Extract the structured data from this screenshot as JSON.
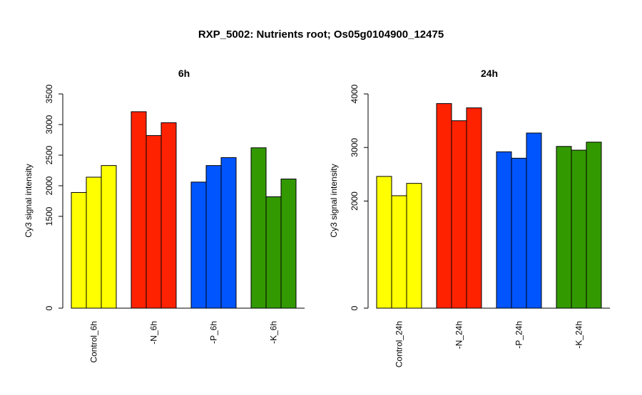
{
  "figure": {
    "title": "RXP_5002: Nutrients root; Os05g0104900_12475"
  },
  "chart_data": [
    {
      "type": "bar",
      "title": "6h",
      "xlabel": "",
      "ylabel": "Cy3 signal intensity",
      "ylim": [
        0,
        3500
      ],
      "yticks": [
        0,
        1500,
        2000,
        2500,
        3000,
        3500
      ],
      "categories": [
        "Control_6h",
        "-N_6h",
        "-P_6h",
        "-K_6h"
      ],
      "colors": [
        "#ffff00",
        "#ff2200",
        "#0055ff",
        "#339900"
      ],
      "values": [
        [
          1890,
          2140,
          2330
        ],
        [
          3210,
          2820,
          3030
        ],
        [
          2060,
          2330,
          2460
        ],
        [
          2620,
          1820,
          2110
        ]
      ],
      "grid": false
    },
    {
      "type": "bar",
      "title": "24h",
      "xlabel": "",
      "ylabel": "Cy3 signal intensity",
      "ylim": [
        0,
        4000
      ],
      "yticks": [
        0,
        2000,
        3000,
        4000
      ],
      "categories": [
        "Control_24h",
        "-N_24h",
        "-P_24h",
        "-K_24h"
      ],
      "colors": [
        "#ffff00",
        "#ff2200",
        "#0055ff",
        "#339900"
      ],
      "values": [
        [
          2460,
          2100,
          2330
        ],
        [
          3820,
          3500,
          3740
        ],
        [
          2920,
          2800,
          3270
        ],
        [
          3020,
          2950,
          3100
        ]
      ],
      "grid": false
    }
  ]
}
